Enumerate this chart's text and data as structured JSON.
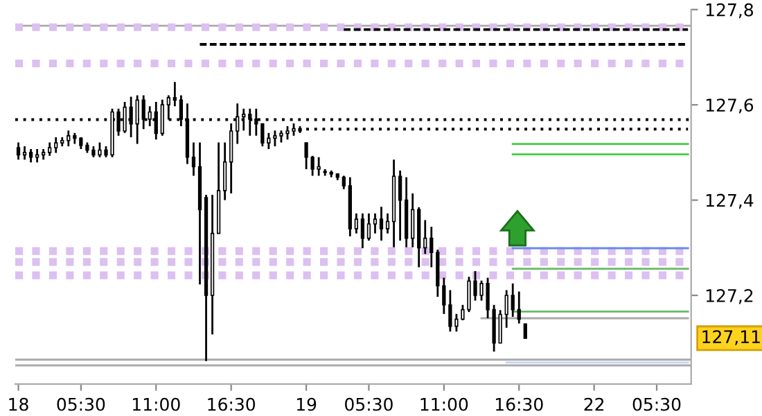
{
  "chart_data": {
    "type": "candlestick",
    "categories": [
      "18",
      null,
      null,
      null,
      null,
      null,
      null,
      null,
      null,
      null,
      "05:30",
      null,
      null,
      null,
      null,
      null,
      null,
      null,
      null,
      null,
      null,
      null,
      "11:00",
      null,
      null,
      null,
      null,
      null,
      null,
      null,
      null,
      null,
      null,
      null,
      "16:30",
      null,
      null,
      null,
      null,
      null,
      null,
      null,
      null,
      null,
      null,
      null,
      "19",
      null,
      null,
      null,
      null,
      null,
      null,
      null,
      null,
      null,
      "05:30",
      null,
      null,
      null,
      null,
      null,
      null,
      null,
      null,
      null,
      null,
      null,
      "11:00",
      null,
      null,
      null,
      null,
      null,
      null,
      null,
      null,
      null,
      null,
      null,
      "16:30",
      null,
      null,
      null,
      null,
      null,
      null,
      null,
      null,
      null,
      null,
      null,
      "22",
      null,
      null,
      null,
      null,
      null,
      null,
      null,
      null,
      null,
      "05:30",
      null,
      null,
      null,
      null,
      null
    ],
    "ohlc": [
      [
        127.51,
        127.521,
        127.485,
        127.495
      ],
      [
        127.495,
        127.513,
        127.485,
        127.5
      ],
      [
        127.5,
        127.507,
        127.479,
        127.49
      ],
      [
        127.49,
        127.507,
        127.479,
        127.495
      ],
      [
        127.495,
        127.507,
        127.485,
        127.5
      ],
      [
        127.5,
        127.521,
        127.493,
        127.51
      ],
      [
        127.51,
        127.532,
        127.499,
        127.52
      ],
      [
        127.52,
        127.532,
        127.513,
        127.525
      ],
      [
        127.525,
        127.546,
        127.513,
        127.535
      ],
      [
        127.535,
        127.541,
        127.518,
        127.53
      ],
      [
        127.53,
        127.532,
        127.507,
        127.515
      ],
      [
        127.515,
        127.521,
        127.499,
        127.505
      ],
      [
        127.505,
        127.513,
        127.49,
        127.495
      ],
      [
        127.495,
        127.521,
        127.49,
        127.505
      ],
      [
        127.505,
        127.513,
        127.49,
        127.495
      ],
      [
        127.495,
        127.592,
        127.49,
        127.585
      ],
      [
        127.585,
        127.592,
        127.535,
        127.545
      ],
      [
        127.545,
        127.606,
        127.541,
        127.595
      ],
      [
        127.595,
        127.617,
        127.532,
        127.56
      ],
      [
        127.56,
        127.62,
        127.518,
        127.61
      ],
      [
        127.61,
        127.62,
        127.549,
        127.57
      ],
      [
        127.57,
        127.597,
        127.555,
        127.585
      ],
      [
        127.585,
        127.606,
        127.527,
        127.54
      ],
      [
        127.54,
        127.611,
        127.535,
        127.6
      ],
      [
        127.6,
        127.62,
        127.569,
        127.615
      ],
      [
        127.615,
        127.648,
        127.597,
        127.61
      ],
      [
        127.61,
        127.62,
        127.555,
        127.57
      ],
      [
        127.57,
        127.603,
        127.476,
        127.49
      ],
      [
        127.49,
        127.521,
        127.451,
        127.47
      ],
      [
        127.47,
        127.521,
        127.223,
        127.38
      ],
      [
        127.405,
        127.411,
        127.062,
        127.2
      ],
      [
        127.2,
        127.411,
        127.118,
        127.33
      ],
      [
        127.33,
        127.521,
        127.33,
        127.42
      ],
      [
        127.42,
        127.521,
        127.4,
        127.48
      ],
      [
        127.48,
        127.561,
        127.414,
        127.545
      ],
      [
        127.545,
        127.603,
        127.518,
        127.575
      ],
      [
        127.575,
        127.592,
        127.546,
        127.58
      ],
      [
        127.58,
        127.592,
        127.535,
        127.57
      ],
      [
        127.57,
        127.592,
        127.535,
        127.56
      ],
      [
        127.56,
        127.561,
        127.513,
        127.52
      ],
      [
        127.52,
        127.541,
        127.507,
        127.53
      ],
      [
        127.53,
        127.546,
        127.513,
        127.535
      ],
      [
        127.535,
        127.546,
        127.521,
        127.54
      ],
      [
        127.54,
        127.555,
        127.527,
        127.545
      ],
      [
        127.545,
        127.561,
        127.535,
        127.55
      ],
      [
        127.55,
        127.555,
        127.541,
        127.545
      ],
      [
        127.52,
        127.521,
        127.465,
        127.49
      ],
      [
        127.49,
        127.493,
        127.451,
        127.465
      ],
      [
        127.465,
        127.49,
        127.451,
        127.47
      ],
      [
        127.46,
        127.465,
        127.451,
        127.458
      ],
      [
        127.458,
        127.462,
        127.448,
        127.455
      ],
      [
        127.455,
        127.456,
        127.442,
        127.448
      ],
      [
        127.448,
        127.451,
        127.423,
        127.43
      ],
      [
        127.43,
        127.448,
        127.324,
        127.34
      ],
      [
        127.34,
        127.372,
        127.33,
        127.36
      ],
      [
        127.36,
        127.372,
        127.299,
        127.32
      ],
      [
        127.32,
        127.372,
        127.315,
        127.35
      ],
      [
        127.35,
        127.372,
        127.33,
        127.36
      ],
      [
        127.36,
        127.386,
        127.315,
        127.34
      ],
      [
        127.34,
        127.372,
        127.33,
        127.355
      ],
      [
        127.355,
        127.485,
        127.301,
        127.45
      ],
      [
        127.45,
        127.462,
        127.315,
        127.4
      ],
      [
        127.4,
        127.448,
        127.301,
        127.32
      ],
      [
        127.32,
        127.414,
        127.301,
        127.38
      ],
      [
        127.38,
        127.385,
        127.259,
        127.3
      ],
      [
        127.3,
        127.358,
        127.287,
        127.32
      ],
      [
        127.32,
        127.344,
        127.259,
        127.29
      ],
      [
        127.29,
        127.296,
        127.197,
        127.22
      ],
      [
        127.22,
        127.237,
        127.161,
        127.18
      ],
      [
        127.18,
        127.211,
        127.124,
        127.135
      ],
      [
        127.135,
        127.161,
        127.124,
        127.15
      ],
      [
        127.15,
        127.18,
        127.148,
        127.17
      ],
      [
        127.17,
        127.239,
        127.165,
        127.23
      ],
      [
        127.23,
        127.251,
        127.189,
        127.2
      ],
      [
        127.2,
        127.231,
        127.189,
        127.225
      ],
      [
        127.225,
        127.237,
        127.152,
        127.17
      ],
      [
        127.17,
        127.18,
        127.082,
        127.1
      ],
      [
        127.1,
        127.169,
        127.1,
        127.16
      ],
      [
        127.16,
        127.211,
        127.132,
        127.2
      ],
      [
        127.2,
        127.225,
        127.155,
        127.17
      ],
      [
        127.17,
        127.208,
        127.141,
        127.15
      ],
      [
        127.14,
        127.141,
        127.11,
        127.11
      ],
      null,
      null,
      null,
      null,
      null,
      null,
      null,
      null,
      null,
      null,
      null,
      null,
      null,
      null,
      null,
      null,
      null,
      null,
      null,
      null,
      null,
      null,
      null,
      null,
      null,
      null
    ],
    "color": "#000000",
    "series": [
      {
        "type": "line",
        "color": "#000000",
        "line_style": "dashed",
        "values": [
          null,
          null,
          null,
          null,
          null,
          null,
          null,
          null,
          null,
          null,
          null,
          null,
          null,
          null,
          null,
          null,
          null,
          null,
          null,
          null,
          null,
          null,
          null,
          null,
          null,
          null,
          null,
          null,
          null,
          null,
          null,
          null,
          null,
          null,
          null,
          null,
          null,
          null,
          null,
          null,
          null,
          null,
          null,
          null,
          null,
          null,
          null,
          null,
          null,
          null,
          null,
          null,
          127.758,
          127.758,
          127.758,
          127.758,
          127.758,
          127.758,
          127.758,
          127.758,
          127.758,
          127.758,
          127.758,
          127.758,
          127.758,
          127.758,
          127.758,
          127.758,
          127.758,
          127.758,
          127.758,
          127.758,
          127.758,
          127.758,
          127.758,
          127.758,
          127.758,
          127.758,
          127.758,
          127.758,
          127.758,
          127.758,
          127.758,
          127.758,
          127.758,
          127.758,
          127.758,
          127.758,
          127.758,
          127.758,
          127.758,
          127.758,
          127.758,
          127.758,
          127.758,
          127.758,
          127.758,
          127.758,
          127.758,
          127.758,
          127.758,
          127.758,
          127.758,
          127.758,
          127.758,
          127.758,
          127.758,
          127.758
        ]
      },
      {
        "type": "line",
        "color": "#000000",
        "line_style": "dashed",
        "values": [
          null,
          null,
          null,
          null,
          null,
          null,
          null,
          null,
          null,
          null,
          null,
          null,
          null,
          null,
          null,
          null,
          null,
          null,
          null,
          null,
          null,
          null,
          null,
          null,
          null,
          null,
          null,
          null,
          null,
          127.727,
          127.727,
          127.727,
          127.727,
          127.727,
          127.727,
          127.727,
          127.727,
          127.727,
          127.727,
          127.727,
          127.727,
          127.727,
          127.727,
          127.727,
          127.727,
          127.727,
          127.727,
          127.727,
          127.727,
          127.727,
          127.727,
          127.727,
          127.727,
          127.727,
          127.727,
          127.727,
          127.727,
          127.727,
          127.727,
          127.727,
          127.727,
          127.727,
          127.727,
          127.727,
          127.727,
          127.727,
          127.727,
          127.727,
          127.727,
          127.727,
          127.727,
          127.727,
          127.727,
          127.727,
          127.727,
          127.727,
          127.727,
          127.727,
          127.727,
          127.727,
          127.727,
          127.727,
          127.727,
          127.727,
          127.727,
          127.727,
          127.727,
          127.727,
          127.727,
          127.727,
          127.727,
          127.727,
          127.727,
          127.727,
          127.727,
          127.727,
          127.727,
          127.727,
          127.727,
          127.727,
          127.727,
          127.727,
          127.727,
          127.727,
          127.727,
          127.727,
          127.727,
          127.727
        ]
      },
      {
        "type": "line",
        "color": "#000000",
        "line_style": "dotted",
        "values": [
          null,
          null,
          null,
          null,
          null,
          null,
          null,
          null,
          null,
          null,
          null,
          null,
          null,
          null,
          null,
          null,
          null,
          null,
          null,
          null,
          null,
          null,
          null,
          null,
          null,
          null,
          null,
          null,
          null,
          null,
          null,
          null,
          null,
          null,
          null,
          null,
          null,
          null,
          null,
          null,
          null,
          null,
          null,
          null,
          null,
          null,
          127.549,
          127.549,
          127.549,
          127.549,
          127.549,
          127.549,
          127.549,
          127.549,
          127.549,
          127.549,
          127.549,
          127.549,
          127.549,
          127.549,
          127.549,
          127.549,
          127.549,
          127.549,
          127.549,
          127.549,
          127.549,
          127.549,
          127.549,
          127.549,
          127.549,
          127.549,
          127.549,
          127.549,
          127.549,
          127.549,
          127.549,
          127.549,
          127.549,
          127.549,
          127.549,
          127.549,
          127.549,
          127.549,
          127.549,
          127.549,
          127.549,
          127.549,
          127.549,
          127.549,
          127.549,
          127.549,
          127.549,
          127.549,
          127.549,
          127.549,
          127.549,
          127.549,
          127.549,
          127.549,
          127.549,
          127.549,
          127.549,
          127.549,
          127.549,
          127.549,
          127.549,
          127.549
        ]
      },
      {
        "type": "line",
        "color": "#44cc44",
        "line_style": "solid",
        "values": [
          null,
          null,
          null,
          null,
          null,
          null,
          null,
          null,
          null,
          null,
          null,
          null,
          null,
          null,
          null,
          null,
          null,
          null,
          null,
          null,
          null,
          null,
          null,
          null,
          null,
          null,
          null,
          null,
          null,
          null,
          null,
          null,
          null,
          null,
          null,
          null,
          null,
          null,
          null,
          null,
          null,
          null,
          null,
          null,
          null,
          null,
          null,
          null,
          null,
          null,
          null,
          null,
          null,
          null,
          null,
          null,
          null,
          null,
          null,
          null,
          null,
          null,
          null,
          null,
          null,
          null,
          null,
          null,
          null,
          null,
          null,
          null,
          null,
          null,
          null,
          null,
          null,
          null,
          null,
          127.518,
          127.518,
          127.518,
          127.518,
          127.518,
          127.518,
          127.518,
          127.518,
          127.518,
          127.518,
          127.518,
          127.518,
          127.518,
          127.518,
          127.518,
          127.518,
          127.518,
          127.518,
          127.518,
          127.518,
          127.518,
          127.518,
          127.518,
          127.518,
          127.518,
          127.518,
          127.518,
          127.518,
          127.518
        ]
      },
      {
        "type": "line",
        "color": "#44cc44",
        "line_style": "solid",
        "values": [
          null,
          null,
          null,
          null,
          null,
          null,
          null,
          null,
          null,
          null,
          null,
          null,
          null,
          null,
          null,
          null,
          null,
          null,
          null,
          null,
          null,
          null,
          null,
          null,
          null,
          null,
          null,
          null,
          null,
          null,
          null,
          null,
          null,
          null,
          null,
          null,
          null,
          null,
          null,
          null,
          null,
          null,
          null,
          null,
          null,
          null,
          null,
          null,
          null,
          null,
          null,
          null,
          null,
          null,
          null,
          null,
          null,
          null,
          null,
          null,
          null,
          null,
          null,
          null,
          null,
          null,
          null,
          null,
          null,
          null,
          null,
          null,
          null,
          null,
          null,
          null,
          null,
          null,
          null,
          127.496,
          127.496,
          127.496,
          127.496,
          127.496,
          127.496,
          127.496,
          127.496,
          127.496,
          127.496,
          127.496,
          127.496,
          127.496,
          127.496,
          127.496,
          127.496,
          127.496,
          127.496,
          127.496,
          127.496,
          127.496,
          127.496,
          127.496,
          127.496,
          127.496,
          127.496,
          127.496,
          127.496,
          127.496
        ]
      },
      {
        "type": "line",
        "color": "#6a8af0",
        "line_style": "solid",
        "values": [
          null,
          null,
          null,
          null,
          null,
          null,
          null,
          null,
          null,
          null,
          null,
          null,
          null,
          null,
          null,
          null,
          null,
          null,
          null,
          null,
          null,
          null,
          null,
          null,
          null,
          null,
          null,
          null,
          null,
          null,
          null,
          null,
          null,
          null,
          null,
          null,
          null,
          null,
          null,
          null,
          null,
          null,
          null,
          null,
          null,
          null,
          null,
          null,
          null,
          null,
          null,
          null,
          null,
          null,
          null,
          null,
          null,
          null,
          null,
          null,
          null,
          null,
          null,
          null,
          null,
          null,
          null,
          null,
          null,
          null,
          null,
          null,
          null,
          null,
          null,
          null,
          null,
          null,
          null,
          127.299,
          127.299,
          127.299,
          127.299,
          127.299,
          127.299,
          127.299,
          127.299,
          127.299,
          127.299,
          127.299,
          127.299,
          127.299,
          127.299,
          127.299,
          127.299,
          127.299,
          127.299,
          127.299,
          127.299,
          127.299,
          127.299,
          127.299,
          127.299,
          127.299,
          127.299,
          127.299,
          127.299,
          127.299
        ]
      },
      {
        "type": "line",
        "color": "#66bb66",
        "line_style": "solid",
        "values": [
          null,
          null,
          null,
          null,
          null,
          null,
          null,
          null,
          null,
          null,
          null,
          null,
          null,
          null,
          null,
          null,
          null,
          null,
          null,
          null,
          null,
          null,
          null,
          null,
          null,
          null,
          null,
          null,
          null,
          null,
          null,
          null,
          null,
          null,
          null,
          null,
          null,
          null,
          null,
          null,
          null,
          null,
          null,
          null,
          null,
          null,
          null,
          null,
          null,
          null,
          null,
          null,
          null,
          null,
          null,
          null,
          null,
          null,
          null,
          null,
          null,
          null,
          null,
          null,
          null,
          null,
          null,
          null,
          null,
          null,
          null,
          null,
          null,
          null,
          null,
          null,
          null,
          null,
          null,
          127.256,
          127.256,
          127.256,
          127.256,
          127.256,
          127.256,
          127.256,
          127.256,
          127.256,
          127.256,
          127.256,
          127.256,
          127.256,
          127.256,
          127.256,
          127.256,
          127.256,
          127.256,
          127.256,
          127.256,
          127.256,
          127.256,
          127.256,
          127.256,
          127.256,
          127.256,
          127.256,
          127.256,
          127.256
        ]
      },
      {
        "type": "line",
        "color": "#66bb66",
        "line_style": "solid",
        "values": [
          null,
          null,
          null,
          null,
          null,
          null,
          null,
          null,
          null,
          null,
          null,
          null,
          null,
          null,
          null,
          null,
          null,
          null,
          null,
          null,
          null,
          null,
          null,
          null,
          null,
          null,
          null,
          null,
          null,
          null,
          null,
          null,
          null,
          null,
          null,
          null,
          null,
          null,
          null,
          null,
          null,
          null,
          null,
          null,
          null,
          null,
          null,
          null,
          null,
          null,
          null,
          null,
          null,
          null,
          null,
          null,
          null,
          null,
          null,
          null,
          null,
          null,
          null,
          null,
          null,
          null,
          null,
          null,
          null,
          null,
          null,
          null,
          null,
          null,
          null,
          null,
          null,
          null,
          null,
          127.166,
          127.166,
          127.166,
          127.166,
          127.166,
          127.166,
          127.166,
          127.166,
          127.166,
          127.166,
          127.166,
          127.166,
          127.166,
          127.166,
          127.166,
          127.166,
          127.166,
          127.166,
          127.166,
          127.166,
          127.166,
          127.166,
          127.166,
          127.166,
          127.166,
          127.166,
          127.166,
          127.166,
          127.166
        ]
      },
      {
        "type": "line",
        "color": "#aaaaaa",
        "line_style": "solid",
        "values": [
          null,
          null,
          null,
          null,
          null,
          null,
          null,
          null,
          null,
          null,
          null,
          null,
          null,
          null,
          null,
          null,
          null,
          null,
          null,
          null,
          null,
          null,
          null,
          null,
          null,
          null,
          null,
          null,
          null,
          null,
          null,
          null,
          null,
          null,
          null,
          null,
          null,
          null,
          null,
          null,
          null,
          null,
          null,
          null,
          null,
          null,
          null,
          null,
          null,
          null,
          null,
          null,
          null,
          null,
          null,
          null,
          null,
          null,
          null,
          null,
          null,
          null,
          null,
          null,
          null,
          null,
          null,
          null,
          null,
          null,
          null,
          null,
          null,
          null,
          127.152,
          127.152,
          127.152,
          127.152,
          127.152,
          127.152,
          127.152,
          127.152,
          127.152,
          127.152,
          127.152,
          127.152,
          127.152,
          127.152,
          127.152,
          127.152,
          127.152,
          127.152,
          127.152,
          127.152,
          127.152,
          127.152,
          127.152,
          127.152,
          127.152,
          127.152,
          127.152,
          127.152,
          127.152,
          127.152,
          127.152,
          127.152,
          127.152,
          127.152
        ]
      },
      {
        "type": "line",
        "color": "#c8d4f0",
        "line_style": "solid",
        "values": [
          null,
          null,
          null,
          null,
          null,
          null,
          null,
          null,
          null,
          null,
          null,
          null,
          null,
          null,
          null,
          null,
          null,
          null,
          null,
          null,
          null,
          null,
          null,
          null,
          null,
          null,
          null,
          null,
          null,
          null,
          null,
          null,
          null,
          null,
          null,
          null,
          null,
          null,
          null,
          null,
          null,
          null,
          null,
          null,
          null,
          null,
          null,
          null,
          null,
          null,
          null,
          null,
          null,
          null,
          null,
          null,
          null,
          null,
          null,
          null,
          null,
          null,
          null,
          null,
          null,
          null,
          null,
          null,
          null,
          null,
          null,
          null,
          null,
          null,
          null,
          null,
          null,
          null,
          127.059,
          127.059,
          127.059,
          127.059,
          127.059,
          127.059,
          127.059,
          127.059,
          127.059,
          127.059,
          127.059,
          127.059,
          127.059,
          127.059,
          127.059,
          127.059,
          127.059,
          127.059,
          127.059,
          127.059,
          127.059,
          127.059,
          127.059,
          127.059,
          127.059,
          127.059,
          127.059,
          127.059,
          127.059,
          127.059
        ]
      }
    ],
    "ref_lines": [
      {
        "axis": "y",
        "value": 127.766,
        "color": "#aaaaaa",
        "line_style": "solid"
      },
      {
        "axis": "y",
        "value": 127.763,
        "color": "#dcc0f0",
        "line_style": "dotted"
      },
      {
        "axis": "y",
        "value": 127.687,
        "color": "#dcc0f0",
        "line_style": "dotted"
      },
      {
        "axis": "y",
        "value": 127.569,
        "color": "#000000",
        "line_style": "dotted"
      },
      {
        "axis": "y",
        "value": 127.293,
        "color": "#dcc0f0",
        "line_style": "dotted"
      },
      {
        "axis": "y",
        "value": 127.27,
        "color": "#dcc0f0",
        "line_style": "dotted"
      },
      {
        "axis": "y",
        "value": 127.242,
        "color": "#dcc0f0",
        "line_style": "dotted"
      },
      {
        "axis": "y",
        "value": 127.065,
        "color": "#aaaaaa",
        "line_style": "solid"
      },
      {
        "axis": "y",
        "value": 127.053,
        "color": "#aaaaaa",
        "line_style": "solid"
      }
    ],
    "annotations": [
      "127,11"
    ],
    "ylim": [
      127.014,
      127.8
    ],
    "yticks": [
      {
        "value": 127.2,
        "label": "127,2"
      },
      {
        "value": 127.4,
        "label": "127,4"
      },
      {
        "value": 127.6,
        "label": "127,6"
      },
      {
        "value": 127.8,
        "label": "127,8"
      }
    ],
    "grid": false
  }
}
